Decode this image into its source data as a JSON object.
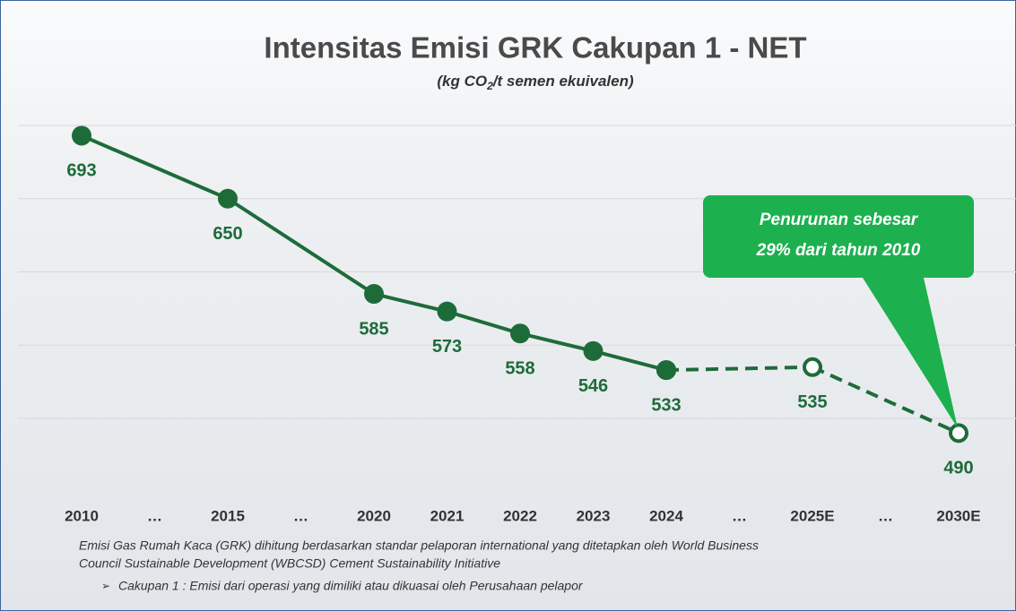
{
  "chart_data": {
    "type": "line",
    "title": "Intensitas Emisi GRK Cakupan 1 - NET",
    "subtitle_parts": [
      "(kg CO",
      "2",
      "/t semen ekuivalen)"
    ],
    "categories": [
      "2010",
      "…",
      "2015",
      "…",
      "2020",
      "2021",
      "2022",
      "2023",
      "2024",
      "…",
      "2025E",
      "…",
      "2030E"
    ],
    "series": [
      {
        "color": "#1e6b3a",
        "dashed": false,
        "marker": "filled",
        "values": [
          693,
          null,
          650,
          null,
          585,
          573,
          558,
          546,
          533,
          null,
          null,
          null,
          null
        ]
      },
      {
        "color": "#1e6b3a",
        "dashed": true,
        "marker": "hollow",
        "values": [
          null,
          null,
          null,
          null,
          null,
          null,
          null,
          null,
          533,
          null,
          535,
          null,
          490
        ]
      }
    ],
    "ylim": [
      450,
      720
    ],
    "yticks": [
      500,
      550,
      600,
      650,
      700
    ],
    "grid": true,
    "annotation": [
      "Penurunan sebesar",
      "29% dari tahun 2010"
    ],
    "notes": [
      "Emisi Gas Rumah Kaca (GRK) dihitung berdasarkan standar pelaporan international yang ditetapkan oleh World Business",
      "Council Sustainable Development (WBCSD) Cement Sustainability Initiative",
      "Cakupan 1 : Emisi dari operasi yang dimiliki atau dikuasai oleh Perusahaan pelapor"
    ]
  }
}
